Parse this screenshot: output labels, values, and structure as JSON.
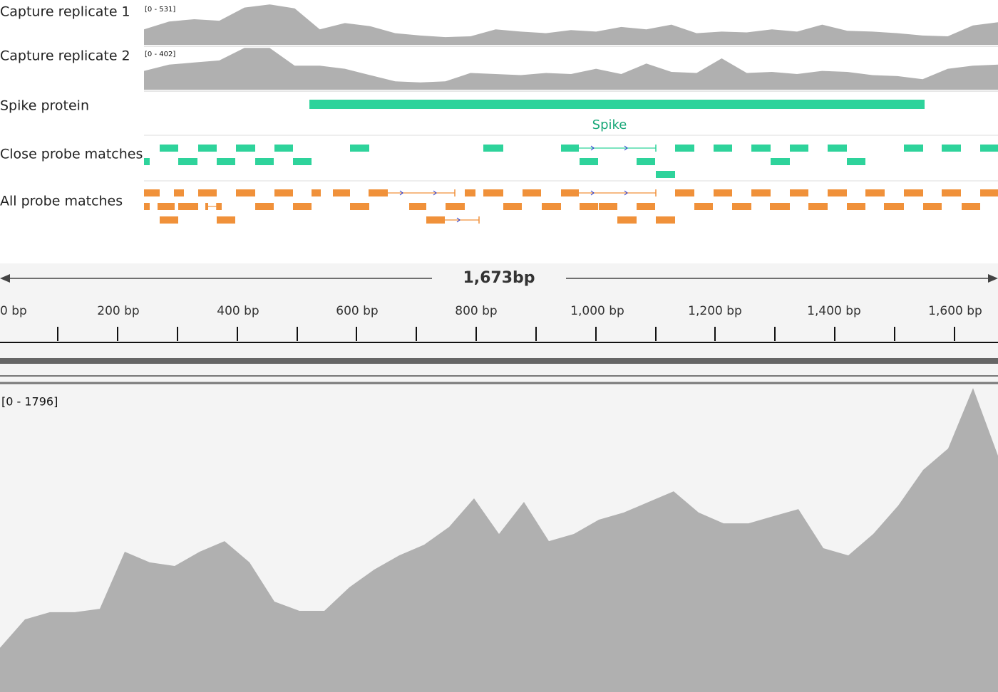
{
  "tracks": [
    {
      "label": "Capture replicate 1",
      "range": "[0 - 531]",
      "max": 531,
      "coverage": [
        200,
        300,
        330,
        310,
        480,
        520,
        470,
        200,
        280,
        240,
        150,
        120,
        100,
        110,
        200,
        170,
        150,
        190,
        170,
        230,
        200,
        260,
        150,
        170,
        160,
        200,
        170,
        260,
        180,
        170,
        150,
        120,
        110,
        250,
        290
      ]
    },
    {
      "label": "Capture replicate 2",
      "range": "[0 - 402]",
      "max": 402,
      "coverage": [
        180,
        240,
        260,
        280,
        400,
        400,
        230,
        230,
        200,
        140,
        80,
        70,
        80,
        160,
        150,
        140,
        160,
        150,
        200,
        150,
        250,
        170,
        160,
        300,
        160,
        170,
        150,
        180,
        170,
        140,
        130,
        100,
        200,
        230,
        240
      ]
    },
    {
      "label": "Spike protein",
      "feature": "Spike"
    },
    {
      "label": "Close probe matches"
    },
    {
      "label": "All probe matches"
    }
  ],
  "ruler": {
    "span": "1,673bp",
    "ticks": [
      "0 bp",
      "200 bp",
      "400 bp",
      "600 bp",
      "800 bp",
      "1,000 bp",
      "1,200 bp",
      "1,400 bp",
      "1,600 bp"
    ]
  },
  "main_coverage": {
    "range": "[0 - 1796]",
    "max": 1796,
    "values": [
      258,
      424,
      466,
      466,
      486,
      819,
      757,
      736,
      819,
      881,
      757,
      528,
      474,
      474,
      611,
      715,
      798,
      860,
      964,
      1131,
      923,
      1110,
      881,
      923,
      1006,
      1048,
      1110,
      1172,
      1048,
      985,
      985,
      1027,
      1068,
      840,
      798,
      923,
      1089,
      1297,
      1422,
      1775,
      1380
    ]
  }
}
